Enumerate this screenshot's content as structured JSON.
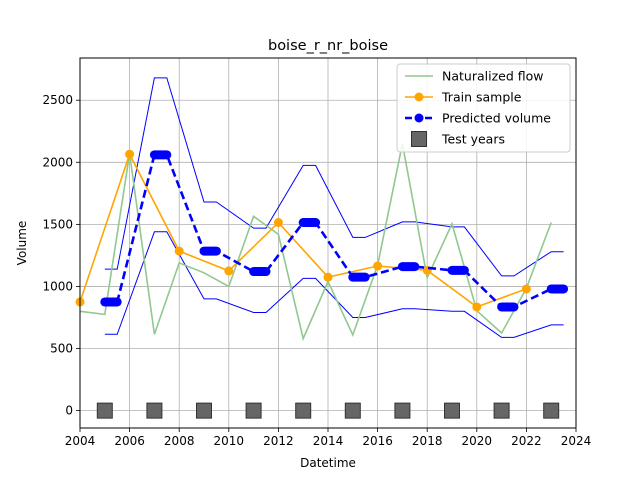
{
  "chart_data": {
    "type": "line",
    "title": "boise_r_nr_boise",
    "xlabel": "Datetime",
    "ylabel": "Volume",
    "xlim": [
      2004,
      2024
    ],
    "ylim": [
      -140,
      2840
    ],
    "x_ticks": [
      "2004",
      "2006",
      "2008",
      "2010",
      "2012",
      "2014",
      "2016",
      "2018",
      "2020",
      "2022",
      "2024"
    ],
    "y_ticks": [
      "0",
      "500",
      "1000",
      "1500",
      "2000",
      "2500"
    ],
    "grid": true,
    "legend_placement": "top-right",
    "colors": {
      "naturalized": "#8fc98f",
      "train": "#ffa500",
      "predicted": "#0000ff",
      "band": "#0000ff",
      "test": "#666666"
    },
    "series": [
      {
        "name": "Naturalized flow",
        "style": "line",
        "points": [
          [
            2004,
            800
          ],
          [
            2005,
            775
          ],
          [
            2006,
            2070
          ],
          [
            2007,
            615
          ],
          [
            2008,
            1190
          ],
          [
            2009,
            1110
          ],
          [
            2010,
            1000
          ],
          [
            2011,
            1565
          ],
          [
            2012,
            1420
          ],
          [
            2013,
            580
          ],
          [
            2014,
            1040
          ],
          [
            2015,
            610
          ],
          [
            2016,
            1170
          ],
          [
            2017,
            2150
          ],
          [
            2018,
            1070
          ],
          [
            2019,
            1505
          ],
          [
            2020,
            805
          ],
          [
            2021,
            625
          ],
          [
            2022,
            985
          ],
          [
            2023,
            1515
          ]
        ]
      },
      {
        "name": "Train sample",
        "style": "line-marker",
        "points": [
          [
            2004,
            875
          ],
          [
            2006,
            2065
          ],
          [
            2008,
            1285
          ],
          [
            2010,
            1125
          ],
          [
            2012,
            1515
          ],
          [
            2014,
            1075
          ],
          [
            2016,
            1165
          ],
          [
            2018,
            1130
          ],
          [
            2020,
            835
          ],
          [
            2022,
            980
          ]
        ]
      },
      {
        "name": "Predicted volume",
        "style": "dashed-segments",
        "segments": [
          {
            "x": [
              2005,
              2005.5
            ],
            "value": 875
          },
          {
            "x": [
              2007,
              2007.5
            ],
            "value": 2060
          },
          {
            "x": [
              2009,
              2009.5
            ],
            "value": 1285
          },
          {
            "x": [
              2011,
              2011.5
            ],
            "value": 1120
          },
          {
            "x": [
              2013,
              2013.5
            ],
            "value": 1515
          },
          {
            "x": [
              2015,
              2015.5
            ],
            "value": 1075
          },
          {
            "x": [
              2017,
              2017.5
            ],
            "value": 1160
          },
          {
            "x": [
              2019,
              2019.5
            ],
            "value": 1130
          },
          {
            "x": [
              2021,
              2021.5
            ],
            "value": 835
          },
          {
            "x": [
              2023,
              2023.5
            ],
            "value": 980
          }
        ]
      },
      {
        "name": "Prediction band",
        "style": "band",
        "upper": [
          [
            2005,
            1140
          ],
          [
            2005.5,
            1140
          ],
          [
            2007,
            2680
          ],
          [
            2007.5,
            2680
          ],
          [
            2009,
            1680
          ],
          [
            2009.5,
            1680
          ],
          [
            2011,
            1470
          ],
          [
            2011.5,
            1470
          ],
          [
            2013,
            1975
          ],
          [
            2013.5,
            1975
          ],
          [
            2015,
            1395
          ],
          [
            2015.5,
            1395
          ],
          [
            2017,
            1520
          ],
          [
            2017.5,
            1520
          ],
          [
            2019,
            1480
          ],
          [
            2019.5,
            1480
          ],
          [
            2021,
            1085
          ],
          [
            2021.5,
            1085
          ],
          [
            2023,
            1280
          ],
          [
            2023.5,
            1280
          ]
        ],
        "lower": [
          [
            2005,
            615
          ],
          [
            2005.5,
            615
          ],
          [
            2007,
            1440
          ],
          [
            2007.5,
            1440
          ],
          [
            2009,
            900
          ],
          [
            2009.5,
            900
          ],
          [
            2011,
            790
          ],
          [
            2011.5,
            790
          ],
          [
            2013,
            1065
          ],
          [
            2013.5,
            1065
          ],
          [
            2015,
            750
          ],
          [
            2015.5,
            750
          ],
          [
            2017,
            820
          ],
          [
            2017.5,
            820
          ],
          [
            2019,
            800
          ],
          [
            2019.5,
            800
          ],
          [
            2021,
            590
          ],
          [
            2021.5,
            590
          ],
          [
            2023,
            690
          ],
          [
            2023.5,
            690
          ]
        ]
      },
      {
        "name": "Test years",
        "style": "square-marker",
        "points": [
          [
            2005,
            0
          ],
          [
            2007,
            0
          ],
          [
            2009,
            0
          ],
          [
            2011,
            0
          ],
          [
            2013,
            0
          ],
          [
            2015,
            0
          ],
          [
            2017,
            0
          ],
          [
            2019,
            0
          ],
          [
            2021,
            0
          ],
          [
            2023,
            0
          ]
        ]
      }
    ],
    "legend": [
      {
        "label": "Naturalized flow",
        "kind": "naturalized"
      },
      {
        "label": "Train sample",
        "kind": "train"
      },
      {
        "label": "Predicted volume",
        "kind": "predicted"
      },
      {
        "label": "Test years",
        "kind": "test"
      }
    ]
  }
}
